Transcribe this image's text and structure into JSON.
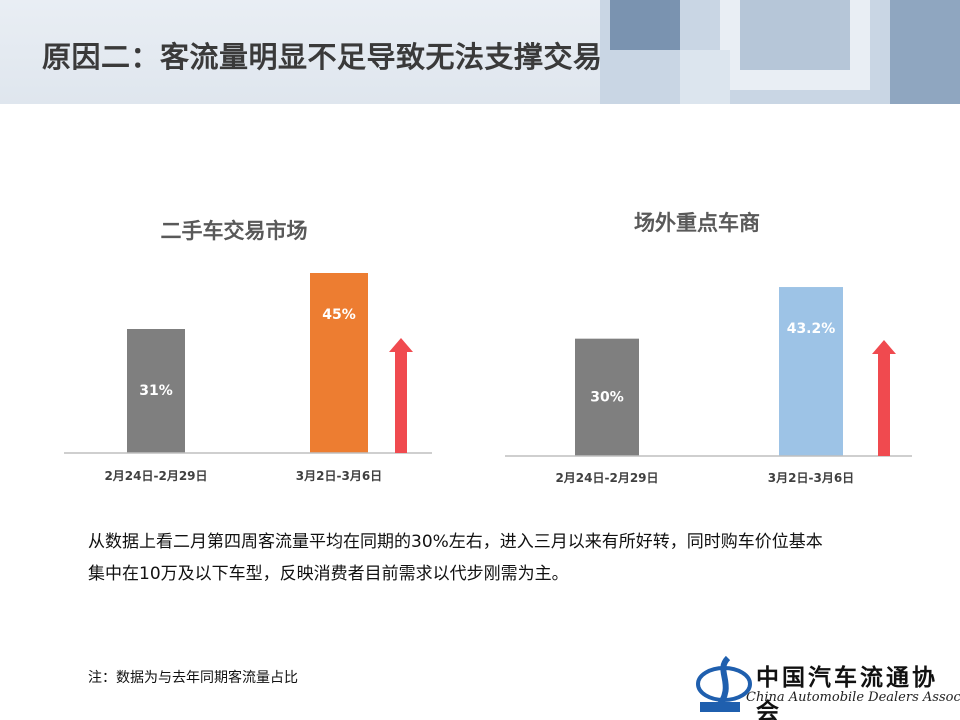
{
  "header": {
    "title": "原因二：客流量明显不足导致无法支撑交易"
  },
  "colors": {
    "gray_bar": "#7f7f7f",
    "orange_bar": "#ed7d31",
    "blue_bar": "#9dc3e6",
    "arrow": "#f04a4f",
    "axis": "#bfbfbf"
  },
  "chart_data": [
    {
      "type": "bar",
      "title": "二手车交易市场",
      "categories": [
        "2月24日-2月29日",
        "3月2日-3月6日"
      ],
      "values": [
        31,
        45
      ],
      "data_labels": [
        "31%",
        "45%"
      ],
      "bar_colors": [
        "#7f7f7f",
        "#ed7d31"
      ],
      "ylim": [
        0,
        45
      ],
      "grid": false,
      "legend": "none",
      "annotation": "red-up-arrow"
    },
    {
      "type": "bar",
      "title": "场外重点车商",
      "categories": [
        "2月24日-2月29日",
        "3月2日-3月6日"
      ],
      "values": [
        30,
        43.2
      ],
      "data_labels": [
        "30%",
        "43.2%"
      ],
      "bar_colors": [
        "#7f7f7f",
        "#9dc3e6"
      ],
      "ylim": [
        0,
        45
      ],
      "grid": false,
      "legend": "none",
      "annotation": "red-up-arrow"
    }
  ],
  "body": {
    "line1": "从数据上看二月第四周客流量平均在同期的30%左右，进入三月以来有所好转，同时购车价位基本",
    "line2": "集中在10万及以下车型，反映消费者目前需求以代步刚需为主。"
  },
  "note": "注：数据为与去年同期客流量占比",
  "logo": {
    "name_cn": "中国汽车流通协会",
    "name_en": "China Automobile Dealers Association"
  }
}
